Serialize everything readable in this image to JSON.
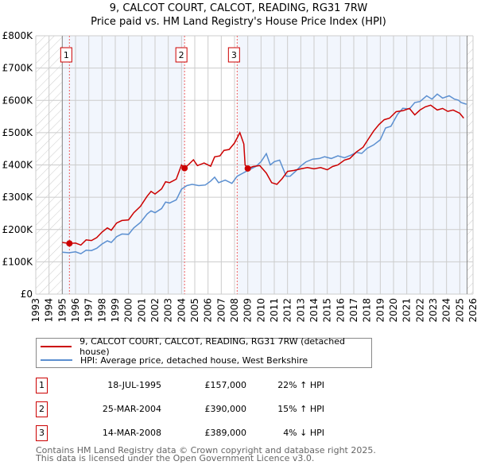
{
  "chart_data": {
    "type": "line",
    "title": "9, CALCOT COURT, CALCOT, READING, RG31 7RW",
    "subtitle": "Price paid vs. HM Land Registry's House Price Index (HPI)",
    "xlim": [
      1993,
      2026
    ],
    "ylim": [
      0,
      800000
    ],
    "x_ticks": [
      "1993",
      "1994",
      "1995",
      "1996",
      "1997",
      "1998",
      "1999",
      "2000",
      "2001",
      "2002",
      "2003",
      "2004",
      "2005",
      "2006",
      "2007",
      "2008",
      "2009",
      "2010",
      "2011",
      "2012",
      "2013",
      "2014",
      "2015",
      "2016",
      "2017",
      "2018",
      "2019",
      "2020",
      "2021",
      "2022",
      "2023",
      "2024",
      "2025",
      "2026"
    ],
    "y_ticks": [
      {
        "v": 0,
        "label": "£0"
      },
      {
        "v": 100000,
        "label": "£100K"
      },
      {
        "v": 200000,
        "label": "£200K"
      },
      {
        "v": 300000,
        "label": "£300K"
      },
      {
        "v": 400000,
        "label": "£400K"
      },
      {
        "v": 500000,
        "label": "£500K"
      },
      {
        "v": 600000,
        "label": "£600K"
      },
      {
        "v": 700000,
        "label": "£700K"
      },
      {
        "v": 800000,
        "label": "£800K"
      }
    ],
    "grid": true,
    "series": [
      {
        "name": "9, CALCOT COURT, CALCOT, READING, RG31 7RW (detached house)",
        "color": "#cc0000",
        "points": [
          [
            1995.0,
            160000
          ],
          [
            1995.54,
            157000
          ],
          [
            1996.0,
            158000
          ],
          [
            1996.4,
            152000
          ],
          [
            1996.8,
            168000
          ],
          [
            1997.0,
            163000
          ],
          [
            1997.5,
            172000
          ],
          [
            1998.0,
            190000
          ],
          [
            1998.4,
            207000
          ],
          [
            1998.7,
            198000
          ],
          [
            1999.2,
            225000
          ],
          [
            1999.6,
            228000
          ],
          [
            2000.0,
            235000
          ],
          [
            2000.4,
            258000
          ],
          [
            2001.0,
            285000
          ],
          [
            2001.6,
            318000
          ],
          [
            2002.0,
            308000
          ],
          [
            2002.4,
            322000
          ],
          [
            2002.9,
            348000
          ],
          [
            2003.2,
            340000
          ],
          [
            2003.6,
            352000
          ],
          [
            2004.0,
            360000
          ],
          [
            2004.3,
            400000
          ],
          [
            2004.7,
            410000
          ],
          [
            2005.0,
            412000
          ],
          [
            2005.4,
            407000
          ],
          [
            2005.9,
            410000
          ],
          [
            2006.2,
            392000
          ],
          [
            2006.7,
            410000
          ],
          [
            2007.2,
            415000
          ],
          [
            2007.5,
            398000
          ],
          [
            2007.8,
            410000
          ],
          [
            2008.2,
            400000
          ],
          [
            2008.4,
            425000
          ],
          [
            2008.8,
            440000
          ],
          [
            2009.1,
            442000
          ],
          [
            2009.4,
            455000
          ],
          [
            2009.8,
            465000
          ],
          [
            2010.2,
            485000
          ],
          [
            2010.5,
            497000
          ],
          [
            2010.9,
            460000
          ],
          [
            2008.21,
            389000
          ],
          [
            2011.0,
            380000
          ],
          [
            2011.3,
            393000
          ],
          [
            2011.6,
            370000
          ],
          [
            2011.9,
            335000
          ],
          [
            2012.2,
            333000
          ],
          [
            2012.6,
            355000
          ],
          [
            2013.1,
            372000
          ]
        ],
        "points_note": "",
        "markers": [
          [
            1995.54,
            157000
          ],
          [
            2004.23,
            390000
          ],
          [
            2008.2,
            389000
          ]
        ]
      },
      {
        "name": "HPI: Average price, detached house, West Berkshire",
        "color": "#5b8fd0",
        "points": []
      }
    ],
    "sales": [
      {
        "num": "1",
        "date": "18-JUL-1995",
        "price": "£157,000",
        "hpi": "22% ↑ HPI",
        "x": 1995.54
      },
      {
        "num": "2",
        "date": "25-MAR-2004",
        "price": "£390,000",
        "hpi": "15% ↑ HPI",
        "x": 2004.23
      },
      {
        "num": "3",
        "date": "14-MAR-2008",
        "price": "£389,000",
        "hpi": "4% ↓ HPI",
        "x": 2008.2
      }
    ],
    "hpi_points": [
      [
        1995.0,
        130000
      ],
      [
        1995.5,
        128000
      ],
      [
        1996.0,
        131000
      ],
      [
        1996.4,
        125000
      ],
      [
        1996.8,
        136000
      ],
      [
        1997.2,
        135000
      ],
      [
        1997.6,
        142000
      ],
      [
        1998.0,
        155000
      ],
      [
        1998.4,
        165000
      ],
      [
        1998.7,
        160000
      ],
      [
        1999.1,
        178000
      ],
      [
        1999.5,
        186000
      ],
      [
        2000.0,
        185000
      ],
      [
        2000.4,
        205000
      ],
      [
        2000.9,
        222000
      ],
      [
        2001.4,
        248000
      ],
      [
        2001.7,
        258000
      ],
      [
        2002.0,
        252000
      ],
      [
        2002.5,
        265000
      ],
      [
        2002.8,
        285000
      ],
      [
        2003.1,
        282000
      ],
      [
        2003.6,
        292000
      ],
      [
        2004.0,
        325000
      ],
      [
        2004.4,
        336000
      ],
      [
        2004.8,
        340000
      ],
      [
        2005.3,
        336000
      ],
      [
        2005.8,
        338000
      ],
      [
        2006.2,
        350000
      ],
      [
        2006.5,
        362000
      ],
      [
        2006.8,
        345000
      ],
      [
        2007.3,
        353000
      ],
      [
        2007.8,
        343000
      ],
      [
        2008.2,
        365000
      ],
      [
        2008.6,
        374000
      ],
      [
        2009.1,
        385000
      ],
      [
        2009.6,
        395000
      ],
      [
        2010.0,
        410000
      ],
      [
        2010.4,
        435000
      ],
      [
        2010.7,
        400000
      ],
      [
        2011.0,
        410000
      ],
      [
        2011.4,
        415000
      ],
      [
        2011.9,
        365000
      ],
      [
        2012.2,
        348000
      ],
      [
        2012.6,
        362000
      ],
      [
        2013.0,
        378000
      ],
      [
        2013.4,
        390000
      ],
      [
        2013.9,
        398000
      ],
      [
        2014.4,
        400000
      ],
      [
        2014.8,
        405000
      ],
      [
        2015.3,
        400000
      ],
      [
        2015.8,
        408000
      ],
      [
        2016.3,
        402000
      ],
      [
        2016.8,
        410000
      ],
      [
        2017.2,
        418000
      ],
      [
        2017.6,
        415000
      ],
      [
        2018.0,
        430000
      ],
      [
        2018.5,
        440000
      ],
      [
        2019.0,
        455000
      ],
      [
        2019.4,
        490000
      ],
      [
        2019.8,
        495000
      ],
      [
        2020.3,
        530000
      ],
      [
        2020.7,
        548000
      ],
      [
        2021.2,
        546000
      ],
      [
        2021.6,
        565000
      ],
      [
        2022.0,
        568000
      ],
      [
        2022.5,
        585000
      ],
      [
        2022.9,
        575000
      ],
      [
        2023.3,
        590000
      ],
      [
        2023.7,
        578000
      ],
      [
        2024.2,
        585000
      ],
      [
        2024.6,
        575000
      ],
      [
        2024.9,
        572000
      ],
      [
        2025.1,
        565000
      ],
      [
        2025.5,
        560000
      ]
    ],
    "price_points_post2008": [
      [
        2008.2,
        389000
      ],
      [
        2008.6,
        395000
      ],
      [
        2009.1,
        398000
      ],
      [
        2009.6,
        375000
      ],
      [
        2010.0,
        345000
      ],
      [
        2010.4,
        340000
      ],
      [
        2010.8,
        358000
      ],
      [
        2011.2,
        380000
      ],
      [
        2011.7,
        383000
      ],
      [
        2012.2,
        388000
      ],
      [
        2012.7,
        392000
      ],
      [
        2013.2,
        388000
      ],
      [
        2013.7,
        392000
      ],
      [
        2014.2,
        385000
      ],
      [
        2014.6,
        395000
      ],
      [
        2015.0,
        400000
      ],
      [
        2015.5,
        415000
      ],
      [
        2015.9,
        420000
      ],
      [
        2016.4,
        440000
      ],
      [
        2016.9,
        455000
      ],
      [
        2017.3,
        480000
      ],
      [
        2017.7,
        505000
      ],
      [
        2018.1,
        525000
      ],
      [
        2018.5,
        540000
      ],
      [
        2018.9,
        545000
      ],
      [
        2019.4,
        565000
      ],
      [
        2019.9,
        568000
      ],
      [
        2020.4,
        575000
      ],
      [
        2020.8,
        555000
      ],
      [
        2021.2,
        570000
      ],
      [
        2021.6,
        580000
      ],
      [
        2022.0,
        585000
      ],
      [
        2022.5,
        570000
      ],
      [
        2022.9,
        575000
      ],
      [
        2023.3,
        566000
      ],
      [
        2023.7,
        570000
      ],
      [
        2024.2,
        560000
      ],
      [
        2024.5,
        545000
      ],
      [
        2024.8,
        570000
      ],
      [
        2025.3,
        575000
      ],
      [
        2025.5,
        580000
      ]
    ]
  },
  "legend": {
    "red": "9, CALCOT COURT, CALCOT, READING, RG31 7RW (detached house)",
    "blue": "HPI: Average price, detached house, West Berkshire"
  },
  "footer": {
    "line1": "Contains HM Land Registry data © Crown copyright and database right 2025.",
    "line2": "This data is licensed under the Open Government Licence v3.0."
  }
}
